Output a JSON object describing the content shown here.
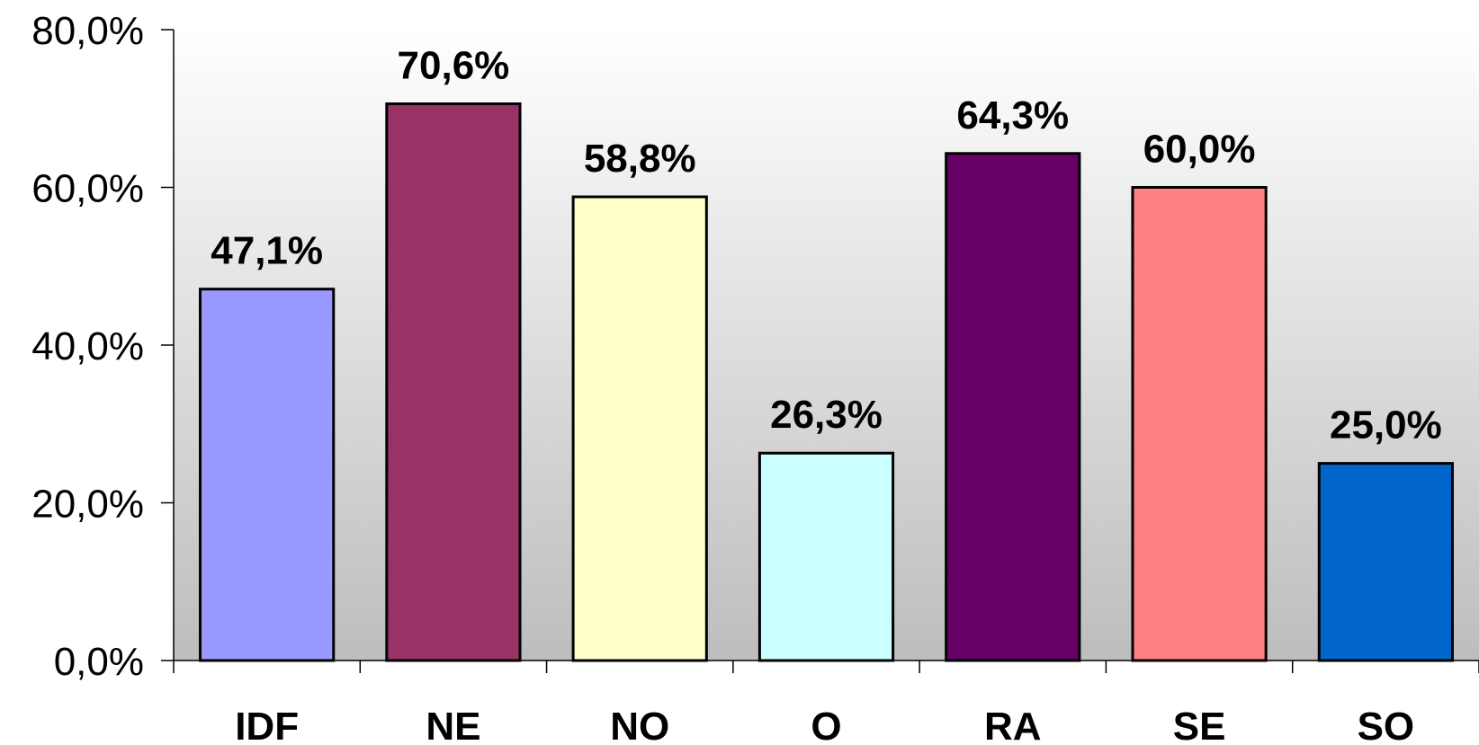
{
  "chart_data": {
    "type": "bar",
    "title": "",
    "xlabel": "",
    "ylabel": "",
    "categories": [
      "IDF",
      "NE",
      "NO",
      "O",
      "RA",
      "SE",
      "SO"
    ],
    "values": [
      47.1,
      70.6,
      58.8,
      26.3,
      64.3,
      60.0,
      25.0
    ],
    "value_labels": [
      "47,1%",
      "70,6%",
      "58,8%",
      "26,3%",
      "64,3%",
      "60,0%",
      "25,0%"
    ],
    "colors": [
      "#9999FF",
      "#993366",
      "#FFFFCC",
      "#CCFFFF",
      "#660066",
      "#FF8080",
      "#0066CC"
    ],
    "ylim": [
      0,
      80
    ],
    "yticks": [
      0,
      20,
      40,
      60,
      80
    ],
    "ytick_labels": [
      "0,0%",
      "20,0%",
      "40,0%",
      "60,0%",
      "80,0%"
    ],
    "grid": false,
    "legend": "none",
    "plot_background": "gradient white to grey"
  }
}
